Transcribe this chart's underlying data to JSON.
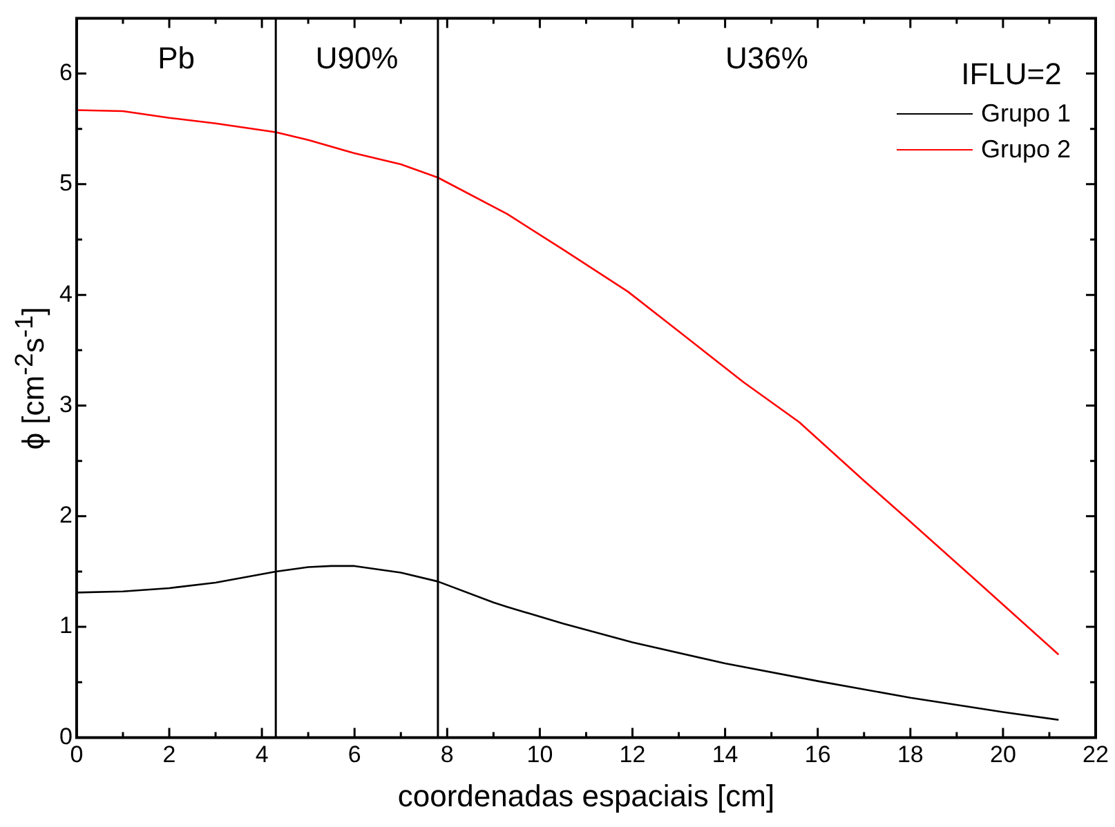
{
  "chart_data": {
    "type": "line",
    "xlabel": "coordenadas espaciais [cm]",
    "ylabel": "ϕ [cm$^{-2}$s$^{-1}$]",
    "legend_title": "IFLU=2",
    "legend": "top right",
    "xlim": [
      0,
      22
    ],
    "ylim": [
      0,
      6.5
    ],
    "xticks": [
      0,
      2,
      4,
      6,
      8,
      10,
      12,
      14,
      16,
      18,
      20,
      22
    ],
    "yticks": [
      0,
      1,
      2,
      3,
      4,
      5,
      6
    ],
    "grid": false,
    "marker": "none",
    "line_style": "solid",
    "series": [
      {
        "name": "Grupo 1",
        "color": "#000000",
        "x": [
          0,
          1,
          2,
          3,
          4.3,
          5,
          5.5,
          6,
          7,
          7.8,
          9,
          9.3,
          10.5,
          12,
          14,
          16,
          18,
          20,
          21.2
        ],
        "values": [
          1.31,
          1.32,
          1.35,
          1.4,
          1.5,
          1.54,
          1.55,
          1.55,
          1.49,
          1.41,
          1.22,
          1.18,
          1.03,
          0.86,
          0.67,
          0.51,
          0.36,
          0.23,
          0.16
        ]
      },
      {
        "name": "Grupo 2",
        "color": "#ff0000",
        "x": [
          0,
          1,
          2,
          3,
          4.3,
          5,
          6,
          7,
          7.8,
          9.3,
          10.5,
          11.9,
          13,
          14.4,
          15.6,
          17,
          18,
          19.55,
          21.2
        ],
        "values": [
          5.67,
          5.66,
          5.6,
          5.55,
          5.47,
          5.4,
          5.28,
          5.18,
          5.06,
          4.73,
          4.41,
          4.03,
          3.67,
          3.21,
          2.85,
          2.32,
          1.95,
          1.37,
          0.75
        ]
      }
    ],
    "ref_lines": [
      {
        "axis": "x",
        "value": 4.3,
        "color": "#000000"
      },
      {
        "axis": "x",
        "value": 7.8,
        "color": "#000000"
      }
    ],
    "annotations": [
      "Pb",
      "U90%",
      "U36%"
    ]
  }
}
